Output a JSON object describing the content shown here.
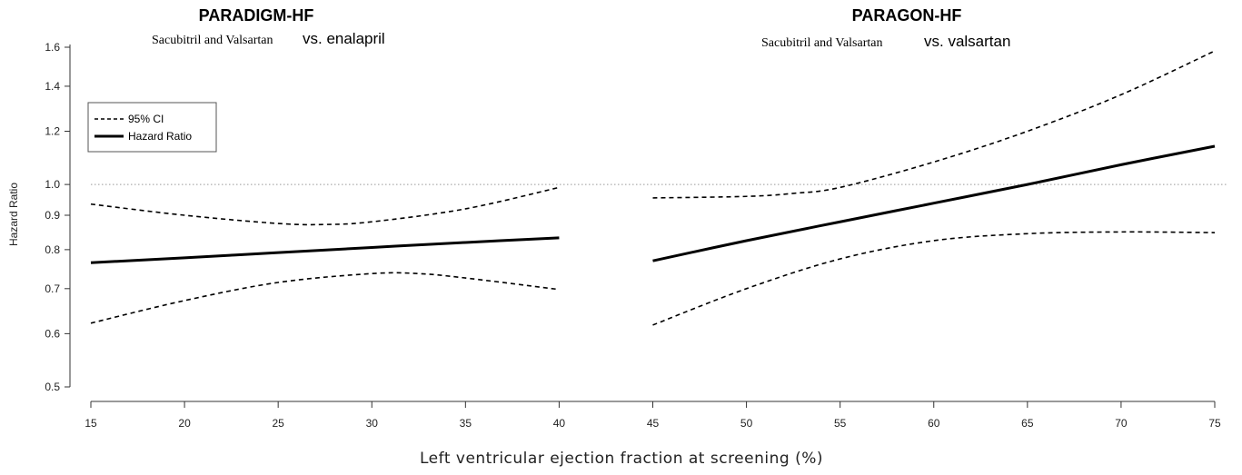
{
  "chart_data": {
    "type": "line",
    "xlabel": "Left ventricular ejection fraction at screening (%)",
    "ylabel": "Hazard Ratio",
    "y_scale": "log",
    "ylim": [
      0.5,
      1.6
    ],
    "xlim": [
      15,
      75
    ],
    "xticks": [
      15,
      20,
      25,
      30,
      35,
      40,
      45,
      50,
      55,
      60,
      65,
      70,
      75
    ],
    "yticks": [
      0.5,
      0.6,
      0.7,
      0.8,
      0.9,
      1.0,
      1.2,
      1.4,
      1.6
    ],
    "ytick_labels": [
      "0.5",
      "0.6",
      "0.7",
      "0.8",
      "0.9",
      "1.0",
      "1.2",
      "1.4",
      "1.6"
    ],
    "reference_line": {
      "y": 1.0,
      "style": "dotted",
      "color": "#999999"
    },
    "legend": {
      "placement": "top-left",
      "entries": [
        {
          "label": "95% CI",
          "style": "dashed"
        },
        {
          "label": "Hazard Ratio",
          "style": "solid"
        }
      ]
    },
    "panels": [
      {
        "title": "PARADIGM-HF",
        "subtitle_left": "Sacubitril and Valsartan",
        "subtitle_right": "vs. enalapril",
        "series": [
          {
            "name": "Hazard Ratio",
            "x": [
              15,
              20,
              25,
              30,
              35,
              40
            ],
            "y": [
              0.765,
              0.778,
              0.792,
              0.806,
              0.82,
              0.833
            ]
          },
          {
            "name": "95% CI",
            "x": [
              15,
              20,
              25,
              27.5,
              30,
              35,
              40
            ],
            "y": [
              0.935,
              0.9,
              0.875,
              0.872,
              0.88,
              0.92,
              0.99
            ]
          },
          {
            "name": "95% CI",
            "x": [
              15,
              20,
              25,
              30,
              32.5,
              35,
              40
            ],
            "y": [
              0.622,
              0.672,
              0.715,
              0.737,
              0.737,
              0.726,
              0.698
            ]
          }
        ]
      },
      {
        "title": "PARAGON-HF",
        "subtitle_left": "Sacubitril and Valsartan",
        "subtitle_right": "vs. valsartan",
        "series": [
          {
            "name": "Hazard Ratio",
            "x": [
              45,
              50,
              55,
              60,
              65,
              70,
              75
            ],
            "y": [
              0.77,
              0.825,
              0.88,
              0.938,
              1.0,
              1.07,
              1.14
            ]
          },
          {
            "name": "95% CI",
            "x": [
              45,
              50,
              52.5,
              55,
              60,
              65,
              70,
              75
            ],
            "y": [
              0.955,
              0.96,
              0.97,
              0.99,
              1.08,
              1.2,
              1.36,
              1.58
            ]
          },
          {
            "name": "95% CI",
            "x": [
              45,
              50,
              55,
              60,
              65,
              70,
              75
            ],
            "y": [
              0.618,
              0.7,
              0.775,
              0.825,
              0.845,
              0.85,
              0.848
            ]
          }
        ]
      }
    ]
  }
}
